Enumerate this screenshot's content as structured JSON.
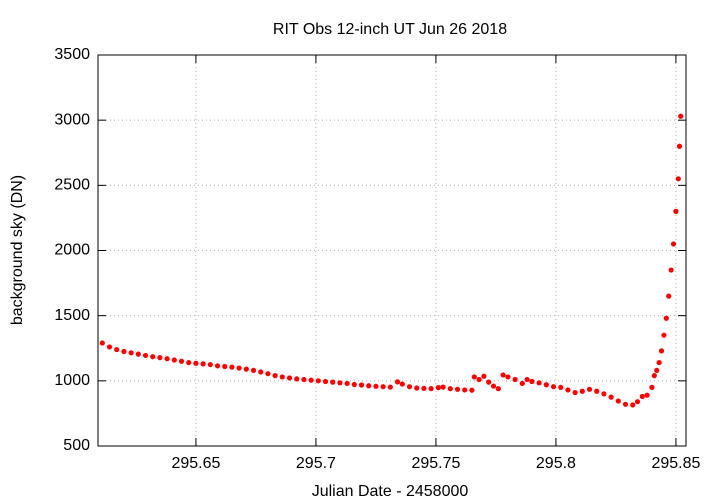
{
  "chart_data": {
    "type": "scatter",
    "title": "RIT Obs 12-inch UT Jun 26 2018",
    "x_label": "Julian Date - 2458000",
    "y_label": "background sky (DN)",
    "xlim": [
      295.6092,
      295.8542
    ],
    "ylim": [
      500,
      3500
    ],
    "xticks": [
      295.65,
      295.7,
      295.75,
      295.8,
      295.85
    ],
    "yticks": [
      500,
      1000,
      1500,
      2000,
      2500,
      3000,
      3500
    ],
    "grid": true,
    "series": [
      {
        "name": "background sky",
        "color": "#ff0000",
        "x": [
          295.611,
          295.614,
          295.617,
          295.62,
          295.623,
          295.626,
          295.629,
          295.632,
          295.635,
          295.638,
          295.641,
          295.644,
          295.647,
          295.65,
          295.653,
          295.656,
          295.659,
          295.662,
          295.665,
          295.668,
          295.671,
          295.674,
          295.677,
          295.68,
          295.683,
          295.686,
          295.689,
          295.692,
          295.695,
          295.698,
          295.701,
          295.704,
          295.707,
          295.71,
          295.713,
          295.716,
          295.719,
          295.722,
          295.725,
          295.728,
          295.731,
          295.734,
          295.736,
          295.739,
          295.742,
          295.745,
          295.748,
          295.751,
          295.753,
          295.756,
          295.759,
          295.762,
          295.765,
          295.766,
          295.768,
          295.77,
          295.772,
          295.774,
          295.776,
          295.778,
          295.78,
          295.783,
          295.786,
          295.788,
          295.79,
          295.793,
          295.796,
          295.799,
          295.802,
          295.805,
          295.808,
          295.811,
          295.814,
          295.817,
          295.82,
          295.823,
          295.826,
          295.829,
          295.832,
          295.834,
          295.836,
          295.838,
          295.84,
          295.841,
          295.842,
          295.843,
          295.844,
          295.845,
          295.846,
          295.847,
          295.848,
          295.849,
          295.85,
          295.851,
          295.8515,
          295.852
        ],
        "values": [
          1290,
          1260,
          1240,
          1225,
          1215,
          1205,
          1195,
          1185,
          1178,
          1170,
          1160,
          1150,
          1140,
          1135,
          1130,
          1125,
          1115,
          1110,
          1105,
          1098,
          1090,
          1080,
          1068,
          1055,
          1040,
          1030,
          1022,
          1015,
          1010,
          1005,
          1000,
          995,
          990,
          985,
          980,
          972,
          968,
          962,
          958,
          955,
          952,
          992,
          975,
          955,
          945,
          942,
          940,
          948,
          952,
          940,
          935,
          930,
          928,
          1030,
          1010,
          1035,
          990,
          960,
          940,
          1045,
          1030,
          1010,
          980,
          1010,
          995,
          985,
          970,
          955,
          950,
          930,
          910,
          920,
          935,
          920,
          900,
          875,
          845,
          820,
          815,
          840,
          880,
          890,
          950,
          1040,
          1080,
          1140,
          1230,
          1350,
          1480,
          1650,
          1850,
          2050,
          2300,
          2550,
          2800,
          3030
        ]
      }
    ]
  }
}
